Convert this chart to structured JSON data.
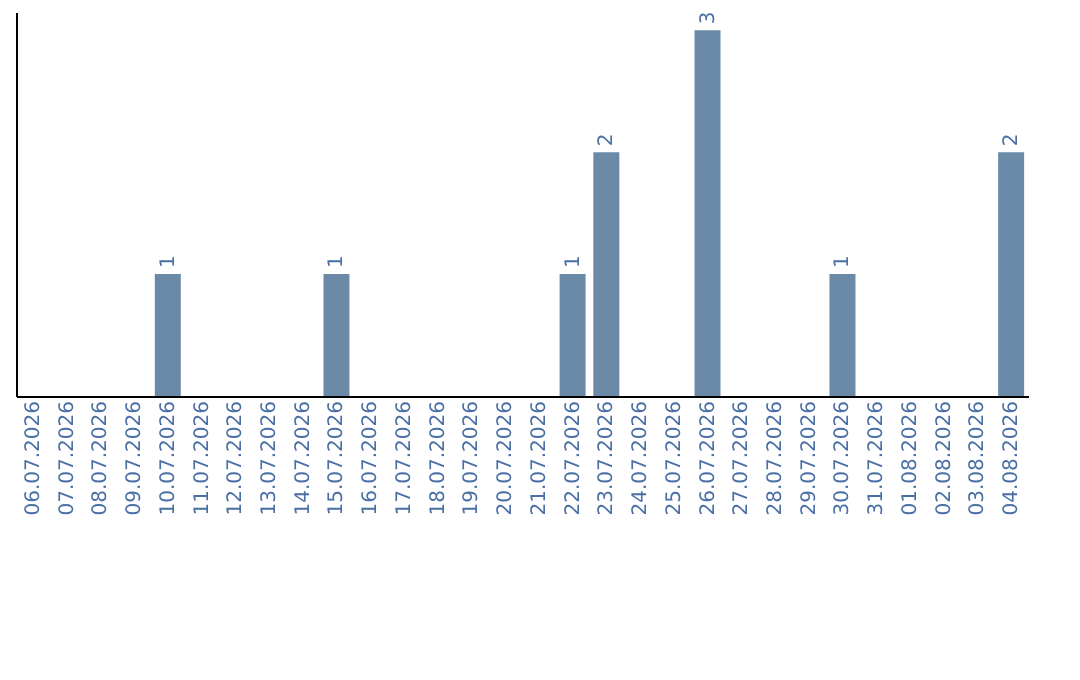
{
  "chart_data": {
    "type": "bar",
    "categories": [
      "06.07.2026",
      "07.07.2026",
      "08.07.2026",
      "09.07.2026",
      "10.07.2026",
      "11.07.2026",
      "12.07.2026",
      "13.07.2026",
      "14.07.2026",
      "15.07.2026",
      "16.07.2026",
      "17.07.2026",
      "18.07.2026",
      "19.07.2026",
      "20.07.2026",
      "21.07.2026",
      "22.07.2026",
      "23.07.2026",
      "24.07.2026",
      "25.07.2026",
      "26.07.2026",
      "27.07.2026",
      "28.07.2026",
      "29.07.2026",
      "30.07.2026",
      "31.07.2026",
      "01.08.2026",
      "02.08.2026",
      "03.08.2026",
      "04.08.2026"
    ],
    "values": [
      0,
      0,
      0,
      0,
      1,
      0,
      0,
      0,
      0,
      1,
      0,
      0,
      0,
      0,
      0,
      0,
      1,
      2,
      0,
      0,
      3,
      0,
      0,
      0,
      1,
      0,
      0,
      0,
      0,
      2
    ],
    "value_labels": [
      null,
      null,
      null,
      null,
      "1",
      null,
      null,
      null,
      null,
      "1",
      null,
      null,
      null,
      null,
      null,
      null,
      "1",
      "2",
      null,
      null,
      "3",
      null,
      null,
      null,
      "1",
      null,
      null,
      null,
      null,
      "2"
    ],
    "color": "#6b8aa8",
    "ylim": [
      0,
      3.15
    ],
    "tick_labels": "x",
    "grid": false
  }
}
